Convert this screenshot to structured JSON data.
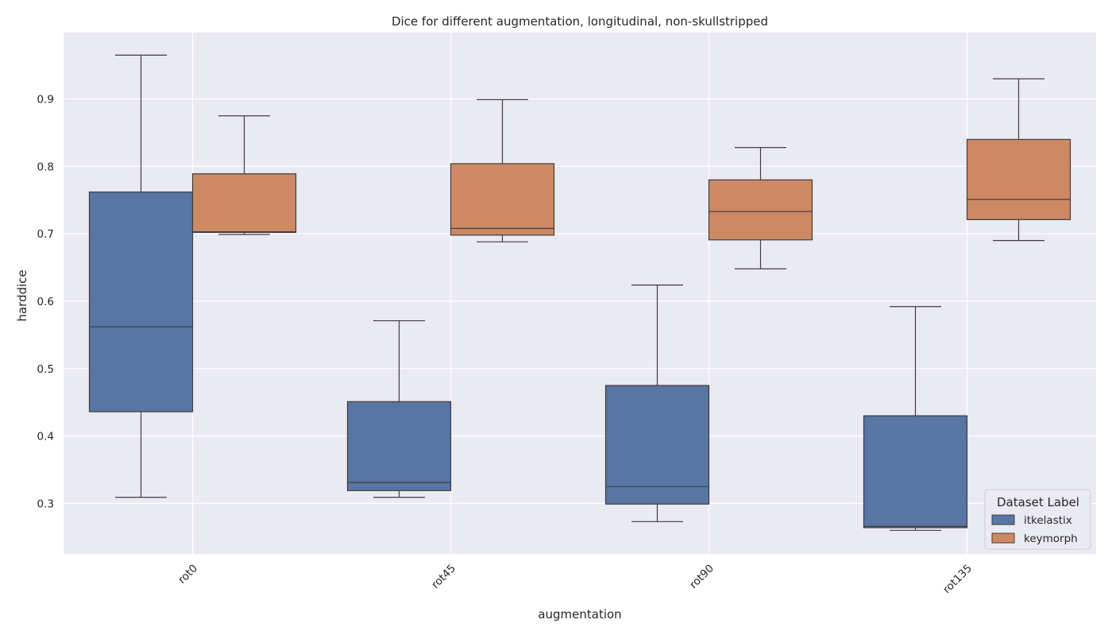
{
  "chart_data": {
    "type": "box",
    "title": "Dice for different augmentation, longitudinal, non-skullstripped",
    "xlabel": "augmentation",
    "ylabel": "harddice",
    "categories": [
      "rot0",
      "rot45",
      "rot90",
      "rot135"
    ],
    "ylim": [
      0.225,
      0.9985
    ],
    "yticks": [
      0.3,
      0.4,
      0.5,
      0.6,
      0.7,
      0.8,
      0.9
    ],
    "grid": true,
    "legend": {
      "title": "Dataset Label",
      "position": "lower-right"
    },
    "series": [
      {
        "name": "itkelastix",
        "color": "#5875a4",
        "boxes": [
          {
            "whisker_low": 0.309,
            "q1": 0.436,
            "median": 0.562,
            "q3": 0.762,
            "whisker_high": 0.965
          },
          {
            "whisker_low": 0.309,
            "q1": 0.319,
            "median": 0.331,
            "q3": 0.451,
            "whisker_high": 0.571
          },
          {
            "whisker_low": 0.273,
            "q1": 0.299,
            "median": 0.325,
            "q3": 0.475,
            "whisker_high": 0.624
          },
          {
            "whisker_low": 0.26,
            "q1": 0.264,
            "median": 0.266,
            "q3": 0.43,
            "whisker_high": 0.592
          }
        ]
      },
      {
        "name": "keymorph",
        "color": "#cc8963",
        "boxes": [
          {
            "whisker_low": 0.699,
            "q1": 0.702,
            "median": 0.703,
            "q3": 0.789,
            "whisker_high": 0.875
          },
          {
            "whisker_low": 0.688,
            "q1": 0.698,
            "median": 0.708,
            "q3": 0.804,
            "whisker_high": 0.899
          },
          {
            "whisker_low": 0.648,
            "q1": 0.691,
            "median": 0.733,
            "q3": 0.78,
            "whisker_high": 0.828
          },
          {
            "whisker_low": 0.69,
            "q1": 0.721,
            "median": 0.751,
            "q3": 0.84,
            "whisker_high": 0.93
          }
        ]
      }
    ]
  }
}
